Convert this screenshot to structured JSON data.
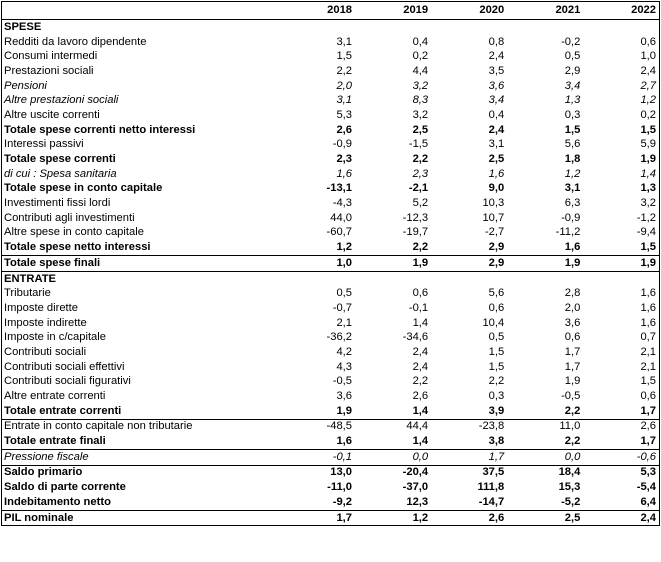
{
  "header": {
    "years": [
      "2018",
      "2019",
      "2020",
      "2021",
      "2022"
    ]
  },
  "rows": [
    {
      "label": "SPESE",
      "values": [
        "",
        "",
        "",
        "",
        ""
      ]
    },
    {
      "label": "Redditi da lavoro dipendente",
      "values": [
        "3,1",
        "0,4",
        "0,8",
        "-0,2",
        "0,6"
      ]
    },
    {
      "label": "Consumi intermedi",
      "values": [
        "1,5",
        "0,2",
        "2,4",
        "0,5",
        "1,0"
      ]
    },
    {
      "label": "Prestazioni sociali",
      "values": [
        "2,2",
        "4,4",
        "3,5",
        "2,9",
        "2,4"
      ]
    },
    {
      "label": "Pensioni",
      "values": [
        "2,0",
        "3,2",
        "3,6",
        "3,4",
        "2,7"
      ]
    },
    {
      "label": "Altre prestazioni sociali",
      "values": [
        "3,1",
        "8,3",
        "3,4",
        "1,3",
        "1,2"
      ]
    },
    {
      "label": "Altre uscite correnti",
      "values": [
        "5,3",
        "3,2",
        "0,4",
        "0,3",
        "0,2"
      ]
    },
    {
      "label": "Totale spese correnti netto interessi",
      "values": [
        "2,6",
        "2,5",
        "2,4",
        "1,5",
        "1,5"
      ]
    },
    {
      "label": "Interessi passivi",
      "values": [
        "-0,9",
        "-1,5",
        "3,1",
        "5,6",
        "5,9"
      ]
    },
    {
      "label": "Totale spese correnti",
      "values": [
        "2,3",
        "2,2",
        "2,5",
        "1,8",
        "1,9"
      ]
    },
    {
      "label": "di cui : Spesa sanitaria",
      "values": [
        "1,6",
        "2,3",
        "1,6",
        "1,2",
        "1,4"
      ]
    },
    {
      "label": "Totale spese in conto capitale",
      "values": [
        "-13,1",
        "-2,1",
        "9,0",
        "3,1",
        "1,3"
      ]
    },
    {
      "label": "Investimenti fissi lordi",
      "values": [
        "-4,3",
        "5,2",
        "10,3",
        "6,3",
        "3,2"
      ]
    },
    {
      "label": "Contributi agli investimenti",
      "values": [
        "44,0",
        "-12,3",
        "10,7",
        "-0,9",
        "-1,2"
      ]
    },
    {
      "label": "Altre spese in conto capitale",
      "values": [
        "-60,7",
        "-19,7",
        "-2,7",
        "-11,2",
        "-9,4"
      ]
    },
    {
      "label": "Totale spese netto interessi",
      "values": [
        "1,2",
        "2,2",
        "2,9",
        "1,6",
        "1,5"
      ]
    },
    {
      "label": "Totale spese finali",
      "values": [
        "1,0",
        "1,9",
        "2,9",
        "1,9",
        "1,9"
      ]
    },
    {
      "label": "ENTRATE",
      "values": [
        "",
        "",
        "",
        "",
        ""
      ]
    },
    {
      "label": "Tributarie",
      "values": [
        "0,5",
        "0,6",
        "5,6",
        "2,8",
        "1,6"
      ]
    },
    {
      "label": "Imposte dirette",
      "values": [
        "-0,7",
        "-0,1",
        "0,6",
        "2,0",
        "1,6"
      ]
    },
    {
      "label": "Imposte indirette",
      "values": [
        "2,1",
        "1,4",
        "10,4",
        "3,6",
        "1,6"
      ]
    },
    {
      "label": "Imposte in c/capitale",
      "values": [
        "-36,2",
        "-34,6",
        "0,5",
        "0,6",
        "0,7"
      ]
    },
    {
      "label": "Contributi sociali",
      "values": [
        "4,2",
        "2,4",
        "1,5",
        "1,7",
        "2,1"
      ]
    },
    {
      "label": "Contributi sociali effettivi",
      "values": [
        "4,3",
        "2,4",
        "1,5",
        "1,7",
        "2,1"
      ]
    },
    {
      "label": "Contributi sociali figurativi",
      "values": [
        "-0,5",
        "2,2",
        "2,2",
        "1,9",
        "1,5"
      ]
    },
    {
      "label": "Altre entrate correnti",
      "values": [
        "3,6",
        "2,6",
        "0,3",
        "-0,5",
        "0,6"
      ]
    },
    {
      "label": "Totale entrate correnti",
      "values": [
        "1,9",
        "1,4",
        "3,9",
        "2,2",
        "1,7"
      ]
    },
    {
      "label": "Entrate in conto capitale non tributarie",
      "values": [
        "-48,5",
        "44,4",
        "-23,8",
        "11,0",
        "2,6"
      ]
    },
    {
      "label": "Totale entrate finali",
      "values": [
        "1,6",
        "1,4",
        "3,8",
        "2,2",
        "1,7"
      ]
    },
    {
      "label": "Pressione fiscale",
      "values": [
        "-0,1",
        "0,0",
        "1,7",
        "0,0",
        "-0,6"
      ]
    },
    {
      "label": "Saldo primario",
      "values": [
        "13,0",
        "-20,4",
        "37,5",
        "18,4",
        "5,3"
      ]
    },
    {
      "label": "Saldo di parte corrente",
      "values": [
        "-11,0",
        "-37,0",
        "111,8",
        "15,3",
        "-5,4"
      ]
    },
    {
      "label": "Indebitamento netto",
      "values": [
        "-9,2",
        "12,3",
        "-14,7",
        "-5,2",
        "6,4"
      ]
    },
    {
      "label": "PIL nominale",
      "values": [
        "1,7",
        "1,2",
        "2,6",
        "2,5",
        "2,4"
      ]
    }
  ]
}
